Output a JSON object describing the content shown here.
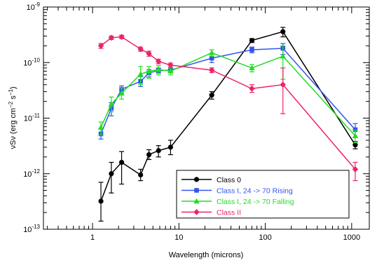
{
  "chart_data": {
    "type": "line",
    "xlabel": "Wavelength (microns)",
    "ylabel_parts": [
      "νSν (erg cm",
      "−2",
      " s",
      "−1",
      ")"
    ],
    "xscale": "log",
    "yscale": "log",
    "xlim": [
      0.27,
      1600
    ],
    "ylim": [
      1e-13,
      1e-09
    ],
    "x_ticks": [
      {
        "value": 1,
        "label": "1"
      },
      {
        "value": 10,
        "label": "10"
      },
      {
        "value": 100,
        "label": "100"
      },
      {
        "value": 1000,
        "label": "1000"
      }
    ],
    "y_ticks": [
      {
        "value": 1e-13,
        "mant": "10",
        "exp": "-13"
      },
      {
        "value": 1e-12,
        "mant": "10",
        "exp": "-12"
      },
      {
        "value": 1e-11,
        "mant": "10",
        "exp": "-11"
      },
      {
        "value": 1e-10,
        "mant": "10",
        "exp": "-10"
      },
      {
        "value": 1e-09,
        "mant": "10",
        "exp": "-9"
      }
    ],
    "legend_position": "bottom-right",
    "series": [
      {
        "name": "Class 0",
        "color": "#000000",
        "marker": "circle",
        "x": [
          1.25,
          1.65,
          2.17,
          3.6,
          4.5,
          5.8,
          8.0,
          24,
          70,
          160,
          1100
        ],
        "y": [
          3.2e-13,
          1e-12,
          1.6e-12,
          9.5e-13,
          2.2e-12,
          2.6e-12,
          3e-12,
          2.6e-11,
          2.5e-10,
          3.6e-10,
          3.3e-12
        ],
        "err_lo": [
          1.4e-13,
          4.5e-13,
          6.5e-13,
          7.5e-13,
          1.8e-12,
          2e-12,
          2.2e-12,
          2.2e-11,
          2.3e-10,
          2.9e-10,
          2.8e-12
        ],
        "err_hi": [
          7e-13,
          1.6e-12,
          2.5e-12,
          1.2e-12,
          2.7e-12,
          3.2e-12,
          4e-12,
          3e-11,
          2.7e-10,
          4.3e-10,
          3.8e-12
        ]
      },
      {
        "name": "Class I, 24 -> 70 Rising",
        "color": "#3355ee",
        "marker": "square",
        "x": [
          1.25,
          1.65,
          2.17,
          3.6,
          4.5,
          5.8,
          8.0,
          24,
          70,
          160,
          1100
        ],
        "y": [
          5.2e-12,
          1.5e-11,
          3.3e-11,
          4.6e-11,
          6.5e-11,
          7.2e-11,
          7.3e-11,
          1.2e-10,
          1.7e-10,
          1.8e-10,
          6.2e-12
        ],
        "err_lo": [
          4.2e-12,
          1.1e-11,
          2.8e-11,
          3.7e-11,
          5.5e-11,
          6.5e-11,
          6.6e-11,
          1e-10,
          1.5e-10,
          1.4e-10,
          4.5e-12
        ],
        "err_hi": [
          6.5e-12,
          1.9e-11,
          3.8e-11,
          5.6e-11,
          7.5e-11,
          8e-11,
          8e-11,
          1.4e-10,
          1.9e-10,
          2.2e-10,
          8e-12
        ]
      },
      {
        "name": "Class I, 24 -> 70 Falling",
        "color": "#22dd22",
        "marker": "triangle",
        "x": [
          1.25,
          1.65,
          2.17,
          3.6,
          4.5,
          5.8,
          8.0,
          24,
          70,
          160,
          1100
        ],
        "y": [
          6.8e-12,
          1.8e-11,
          2.8e-11,
          6.2e-11,
          7e-11,
          7.5e-11,
          7e-11,
          1.5e-10,
          8e-11,
          1.3e-10,
          4.8e-12
        ],
        "err_lo": [
          5e-12,
          1.3e-11,
          2.2e-11,
          4e-11,
          5.2e-11,
          6e-11,
          6e-11,
          1.3e-10,
          6.8e-11,
          5e-11,
          3.6e-12
        ],
        "err_hi": [
          8.5e-12,
          2.4e-11,
          3.5e-11,
          8.5e-11,
          8.5e-11,
          8.8e-11,
          8e-11,
          1.7e-10,
          9.2e-11,
          2e-10,
          6e-12
        ]
      },
      {
        "name": "Class II",
        "color": "#ee2266",
        "marker": "diamond",
        "x": [
          1.25,
          1.65,
          2.17,
          3.6,
          4.5,
          5.8,
          8.0,
          24,
          70,
          160,
          1100
        ],
        "y": [
          2e-10,
          2.8e-10,
          2.9e-10,
          1.75e-10,
          1.45e-10,
          1.05e-10,
          9e-11,
          7.3e-11,
          3.4e-11,
          4e-11,
          1.2e-12
        ],
        "err_lo": [
          1.8e-10,
          2.6e-10,
          2.7e-10,
          1.6e-10,
          1.3e-10,
          9.5e-11,
          8.2e-11,
          6.6e-11,
          2.9e-11,
          1.2e-11,
          7.5e-13
        ],
        "err_hi": [
          2.2e-10,
          3e-10,
          3.1e-10,
          1.9e-10,
          1.6e-10,
          1.15e-10,
          9.8e-11,
          8e-11,
          4e-11,
          8e-11,
          1.6e-12
        ]
      }
    ]
  }
}
